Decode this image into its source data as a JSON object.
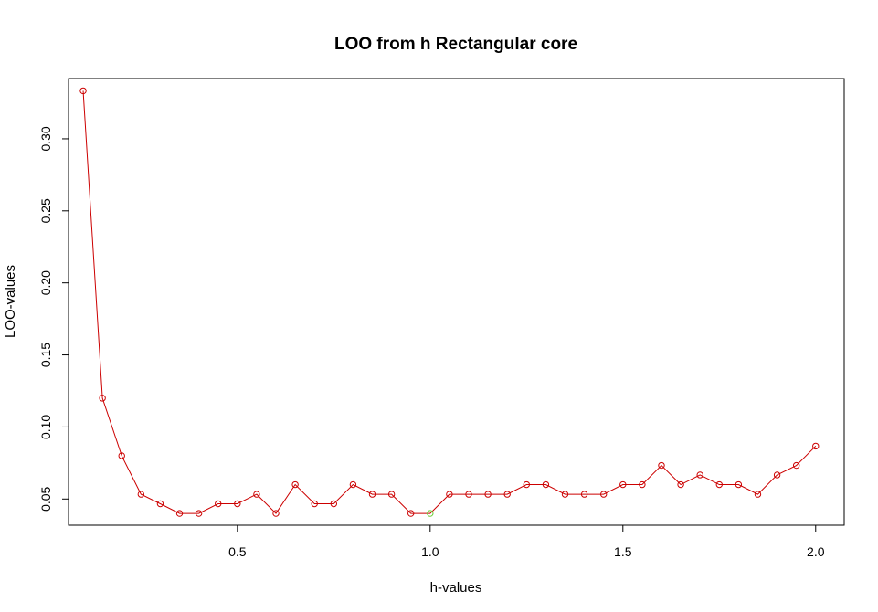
{
  "chart_data": {
    "type": "line",
    "title": "LOO from h Rectangular core",
    "xlabel": "h-values",
    "ylabel": "LOO-values",
    "x_ticks": [
      0.5,
      1.0,
      1.5,
      2.0
    ],
    "x_tick_labels": [
      "0.5",
      "1.0",
      "1.5",
      "2.0"
    ],
    "y_ticks": [
      0.05,
      0.1,
      0.15,
      0.2,
      0.25,
      0.3
    ],
    "y_tick_labels": [
      "0.05",
      "0.10",
      "0.15",
      "0.20",
      "0.25",
      "0.30"
    ],
    "xlim": [
      0.062,
      2.074
    ],
    "ylim": [
      0.0318,
      0.3418
    ],
    "grid": false,
    "legend": "none",
    "line_color": "#cc0000",
    "point_color": "#cc0000",
    "highlight_color": "#66cc33",
    "highlight_x": 1.0,
    "x": [
      0.1,
      0.15,
      0.2,
      0.25,
      0.3,
      0.35,
      0.4,
      0.45,
      0.5,
      0.55,
      0.6,
      0.65,
      0.7,
      0.75,
      0.8,
      0.85,
      0.9,
      0.95,
      1.0,
      1.05,
      1.1,
      1.15,
      1.2,
      1.25,
      1.3,
      1.35,
      1.4,
      1.45,
      1.5,
      1.55,
      1.6,
      1.65,
      1.7,
      1.75,
      1.8,
      1.85,
      1.9,
      1.95,
      2.0
    ],
    "values": [
      0.3333,
      0.12,
      0.08,
      0.0533,
      0.0467,
      0.04,
      0.04,
      0.0467,
      0.0467,
      0.0533,
      0.04,
      0.06,
      0.0467,
      0.0467,
      0.06,
      0.0533,
      0.0533,
      0.04,
      0.04,
      0.0533,
      0.0533,
      0.0533,
      0.0533,
      0.06,
      0.06,
      0.0533,
      0.0533,
      0.0533,
      0.06,
      0.06,
      0.0733,
      0.06,
      0.0667,
      0.06,
      0.06,
      0.0533,
      0.0667,
      0.0733,
      0.0867
    ]
  }
}
